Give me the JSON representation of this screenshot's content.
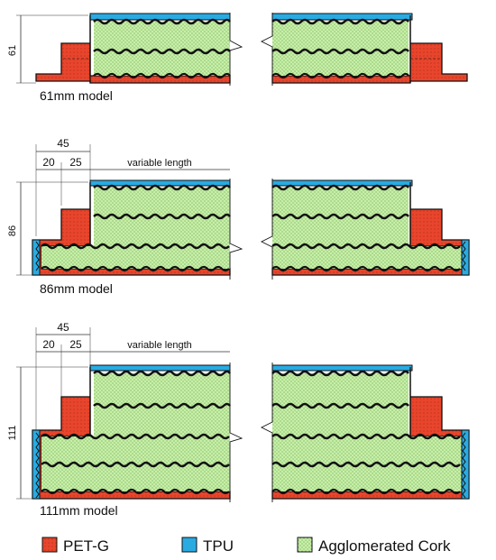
{
  "models": [
    {
      "name": "61mm model",
      "height_label": "61",
      "dims": null
    },
    {
      "name": "86mm model",
      "height_label": "86",
      "dims": {
        "total": "45",
        "first": "20",
        "second": "25",
        "variable": "variable length"
      }
    },
    {
      "name": "111mm model",
      "height_label": "111",
      "dims": {
        "total": "45",
        "first": "20",
        "second": "25",
        "variable": "variable length"
      }
    }
  ],
  "legend": [
    {
      "label": "PET-G",
      "color": "#e8452c"
    },
    {
      "label": "TPU",
      "color": "#29abe2"
    },
    {
      "label": "Agglomerated Cork",
      "color": "#c6f0a6"
    }
  ],
  "colors": {
    "petg": "#e8452c",
    "tpu": "#29abe2",
    "cork": "#c6f0a6",
    "line": "#111111"
  }
}
